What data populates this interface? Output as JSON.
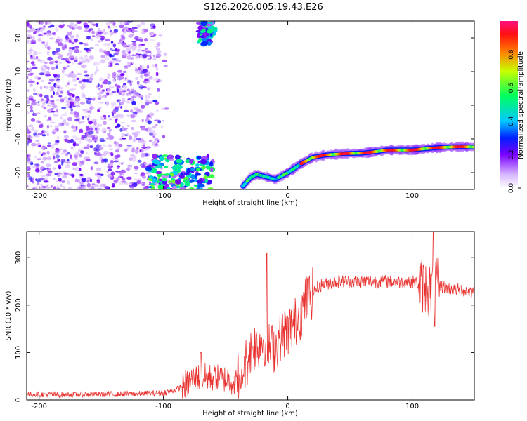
{
  "title": "S126.2026.005.19.43.E26",
  "colorbar": {
    "label": "Normalized spectral amplitude",
    "ticks": [
      "0.0",
      "0.2",
      "0.4",
      "0.6",
      "0.8"
    ],
    "range": [
      0,
      1
    ]
  },
  "chart_data": [
    {
      "type": "heatmap",
      "xlabel": "Height of straight line (km)",
      "ylabel": "Frequency (Hz)",
      "xlim": [
        -210,
        150
      ],
      "ylim": [
        -25,
        25
      ],
      "xticks": [
        -200,
        -100,
        0,
        100
      ],
      "xtick_labels": [
        "-200",
        "-100",
        "0",
        "100"
      ],
      "yticks": [
        -20,
        -10,
        0,
        10,
        20
      ],
      "ytick_labels": [
        "-20",
        "-10",
        "0",
        "10",
        "20"
      ],
      "ridge": {
        "description_x": [
          -36,
          -30,
          -25,
          -20,
          -15,
          -10,
          -5,
          0,
          5,
          10,
          15,
          20,
          30,
          40,
          50,
          60,
          70,
          80,
          90,
          100,
          110,
          120,
          130,
          140,
          150
        ],
        "frequency": [
          -24,
          -21.5,
          -20.5,
          -21,
          -21.5,
          -22,
          -21,
          -20,
          -18.8,
          -17.5,
          -16.5,
          -15.5,
          -14.8,
          -14.5,
          -14.3,
          -14.2,
          -13.8,
          -13.3,
          -13.3,
          -13.3,
          -12.9,
          -12.6,
          -12.4,
          -12.3,
          -12.4
        ]
      },
      "upper_cluster": {
        "x": [
          -72,
          -58
        ],
        "frequency": [
          18,
          25
        ]
      },
      "lower_cluster": {
        "x": [
          -112,
          -60
        ],
        "frequency": [
          -25,
          -15
        ]
      }
    },
    {
      "type": "line",
      "xlabel": "Height of straight line (km)",
      "ylabel": "SNR (10 * v/v)",
      "xlim": [
        -210,
        150
      ],
      "ylim": [
        0,
        355
      ],
      "xticks": [
        -200,
        -100,
        0,
        100
      ],
      "xtick_labels": [
        "-200",
        "-100",
        "0",
        "100"
      ],
      "yticks": [
        0,
        100,
        200,
        300
      ],
      "ytick_labels": [
        "0",
        "100",
        "200",
        "300"
      ],
      "series": [
        {
          "name": "SNR",
          "color": "#e8322f",
          "x": [
            -210,
            -180,
            -150,
            -120,
            -100,
            -90,
            -80,
            -75,
            -70,
            -60,
            -50,
            -45,
            -38,
            -35,
            -30,
            -25,
            -20,
            -15,
            -10,
            -5,
            0,
            5,
            10,
            15,
            20,
            25,
            30,
            40,
            50,
            60,
            70,
            80,
            90,
            100,
            105,
            110,
            115,
            118,
            120,
            125,
            130,
            140,
            150
          ],
          "y": [
            12,
            11,
            12,
            13,
            15,
            22,
            35,
            50,
            48,
            47,
            45,
            40,
            30,
            70,
            100,
            120,
            130,
            110,
            110,
            140,
            145,
            160,
            180,
            210,
            225,
            240,
            245,
            250,
            250,
            250,
            250,
            250,
            248,
            250,
            245,
            240,
            230,
            245,
            240,
            238,
            235,
            232,
            228
          ]
        }
      ],
      "spikes": [
        {
          "x": -70,
          "y": 100
        },
        {
          "x": -40,
          "y": 95
        },
        {
          "x": -17,
          "y": 310
        },
        {
          "x": 117,
          "y": 355
        },
        {
          "x": 118,
          "y": 155
        }
      ]
    }
  ]
}
